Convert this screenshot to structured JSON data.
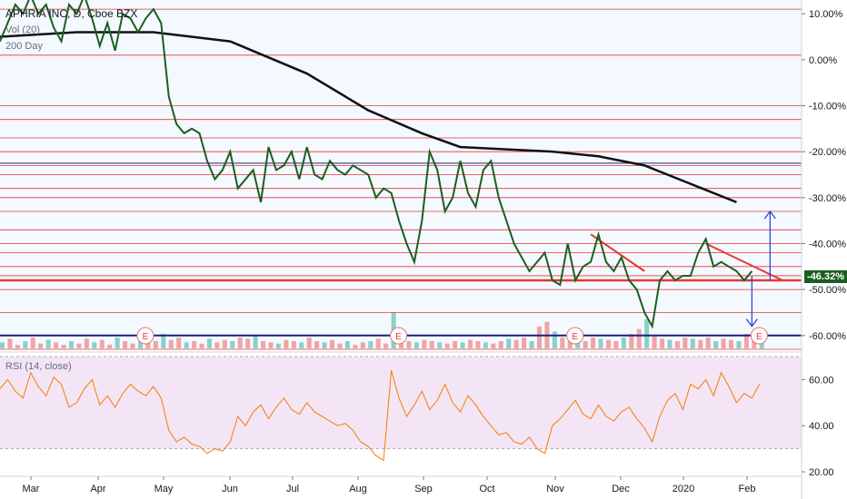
{
  "header": {
    "symbol_title": "APHRIA INC, D, Cboe BZX",
    "volume_label": "Vol (20)",
    "ma_label": "200 Day"
  },
  "rsi_label": "RSI (14, close)",
  "last_price_tag": "-46.32%",
  "earnings_marker": "E",
  "colors": {
    "price_line": "#1b5e20",
    "ma_line": "#111111",
    "support_resistance": "#e53935",
    "blue_line": "#1a237e",
    "rsi_line": "#f57c00",
    "rsi_band": "#f3e5f5",
    "volume_up": "#80cbc4",
    "volume_down": "#ef9a9a",
    "last_tag_bg": "#1b5e20"
  },
  "chart_data": [
    {
      "type": "line",
      "title": "APHRIA INC, D, Cboe BZX",
      "x_ticks": [
        "Mar",
        "Apr",
        "May",
        "Jun",
        "Jul",
        "Aug",
        "Sep",
        "Oct",
        "Nov",
        "Dec",
        "2020",
        "Feb"
      ],
      "y_ticks": [
        "10.00%",
        "0.00%",
        "-10.00%",
        "-20.00%",
        "-30.00%",
        "-40.00%",
        "-50.00%",
        "-60.00%"
      ],
      "y_unit": "percent change",
      "ylim": [
        -63,
        13
      ],
      "series": [
        {
          "name": "Price",
          "points": [
            [
              0,
              4
            ],
            [
              1,
              8
            ],
            [
              2,
              12
            ],
            [
              3,
              10
            ],
            [
              4,
              14
            ],
            [
              5,
              10
            ],
            [
              6,
              12
            ],
            [
              7,
              7
            ],
            [
              8,
              4
            ],
            [
              9,
              12
            ],
            [
              10,
              10
            ],
            [
              11,
              14
            ],
            [
              12,
              9
            ],
            [
              13,
              3
            ],
            [
              14,
              8
            ],
            [
              15,
              2
            ],
            [
              16,
              10
            ],
            [
              17,
              9
            ],
            [
              18,
              6
            ],
            [
              19,
              9
            ],
            [
              20,
              11
            ],
            [
              21,
              8
            ],
            [
              22,
              -8
            ],
            [
              23,
              -14
            ],
            [
              24,
              -16
            ],
            [
              25,
              -15
            ],
            [
              26,
              -16
            ],
            [
              27,
              -22
            ],
            [
              28,
              -26
            ],
            [
              29,
              -24
            ],
            [
              30,
              -20
            ],
            [
              31,
              -28
            ],
            [
              32,
              -26
            ],
            [
              33,
              -24
            ],
            [
              34,
              -31
            ],
            [
              35,
              -19
            ],
            [
              36,
              -24
            ],
            [
              37,
              -23
            ],
            [
              38,
              -20
            ],
            [
              39,
              -26
            ],
            [
              40,
              -19
            ],
            [
              41,
              -25
            ],
            [
              42,
              -26
            ],
            [
              43,
              -22
            ],
            [
              44,
              -24
            ],
            [
              45,
              -25
            ],
            [
              46,
              -23
            ],
            [
              47,
              -24
            ],
            [
              48,
              -25
            ],
            [
              49,
              -30
            ],
            [
              50,
              -28
            ],
            [
              51,
              -29
            ],
            [
              52,
              -35
            ],
            [
              53,
              -40
            ],
            [
              54,
              -44
            ],
            [
              55,
              -35
            ],
            [
              56,
              -20
            ],
            [
              57,
              -24
            ],
            [
              58,
              -33
            ],
            [
              59,
              -30
            ],
            [
              60,
              -22
            ],
            [
              61,
              -29
            ],
            [
              62,
              -32
            ],
            [
              63,
              -24
            ],
            [
              64,
              -22
            ],
            [
              65,
              -30
            ],
            [
              66,
              -35
            ],
            [
              67,
              -40
            ],
            [
              68,
              -43
            ],
            [
              69,
              -46
            ],
            [
              70,
              -44
            ],
            [
              71,
              -42
            ],
            [
              72,
              -48
            ],
            [
              73,
              -49
            ],
            [
              74,
              -40
            ],
            [
              75,
              -48
            ],
            [
              76,
              -45
            ],
            [
              77,
              -44
            ],
            [
              78,
              -38
            ],
            [
              79,
              -44
            ],
            [
              80,
              -46
            ],
            [
              81,
              -43
            ],
            [
              82,
              -48
            ],
            [
              83,
              -50
            ],
            [
              84,
              -55
            ],
            [
              85,
              -58
            ],
            [
              86,
              -48
            ],
            [
              87,
              -46
            ],
            [
              88,
              -48
            ],
            [
              89,
              -47
            ],
            [
              90,
              -47
            ],
            [
              91,
              -42
            ],
            [
              92,
              -39
            ],
            [
              93,
              -45
            ],
            [
              94,
              -44
            ],
            [
              95,
              -45
            ],
            [
              96,
              -46
            ],
            [
              97,
              -48
            ],
            [
              98,
              -46
            ]
          ]
        },
        {
          "name": "200 Day",
          "points": [
            [
              0,
              5
            ],
            [
              10,
              6
            ],
            [
              20,
              6
            ],
            [
              30,
              4
            ],
            [
              40,
              -3
            ],
            [
              48,
              -11
            ],
            [
              55,
              -16
            ],
            [
              60,
              -19
            ],
            [
              66,
              -19.5
            ],
            [
              72,
              -20
            ],
            [
              78,
              -21
            ],
            [
              84,
              -23
            ],
            [
              90,
              -27
            ],
            [
              96,
              -31
            ]
          ]
        }
      ],
      "annotations": {
        "horizontal_levels": [
          -63,
          11,
          1,
          -10,
          -13,
          -17,
          -20,
          -23,
          -25,
          -28,
          -30,
          -33,
          -37,
          -40,
          -42,
          -45,
          -47,
          -48,
          -50,
          -55
        ],
        "thick_level": -48,
        "blue_levels": [
          -22.5,
          -60
        ],
        "descending_trendlines": [
          [
            [
              77,
              -38
            ],
            [
              84,
              -46
            ]
          ],
          [
            [
              92,
              -40
            ],
            [
              102,
              -48
            ]
          ]
        ],
        "arrow_up": {
          "x": 98,
          "from": -48,
          "to": -33
        },
        "arrow_down": {
          "x": 98,
          "from": -47,
          "to": -58
        },
        "earnings_x": [
          18,
          51,
          74,
          98
        ]
      }
    },
    {
      "type": "bar",
      "title": "Vol (20)",
      "values": [
        5,
        8,
        3,
        6,
        9,
        4,
        7,
        5,
        3,
        6,
        4,
        8,
        5,
        7,
        3,
        9,
        6,
        4,
        8,
        5,
        6,
        12,
        7,
        9,
        5,
        6,
        4,
        8,
        5,
        7,
        6,
        9,
        8,
        10,
        6,
        5,
        4,
        7,
        6,
        5,
        9,
        6,
        5,
        7,
        4,
        6,
        3,
        5,
        6,
        8,
        4,
        30,
        10,
        6,
        5,
        7,
        6,
        5,
        4,
        6,
        5,
        7,
        6,
        5,
        4,
        6,
        8,
        7,
        9,
        6,
        18,
        22,
        14,
        9,
        8,
        7,
        6,
        9,
        8,
        7,
        6,
        9,
        12,
        16,
        24,
        10,
        8,
        7,
        6,
        9,
        8,
        7,
        9,
        6,
        8,
        7,
        6,
        12,
        14,
        8
      ]
    },
    {
      "type": "line",
      "title": "RSI (14, close)",
      "y_ticks": [
        "60.00",
        "40.00",
        "20.00"
      ],
      "ylim": [
        20,
        70
      ],
      "band": [
        30,
        70
      ],
      "values": [
        56,
        60,
        55,
        52,
        63,
        57,
        53,
        61,
        58,
        48,
        50,
        56,
        60,
        49,
        53,
        48,
        54,
        58,
        55,
        53,
        57,
        52,
        38,
        33,
        35,
        32,
        31,
        28,
        30,
        29,
        33,
        44,
        40,
        46,
        49,
        43,
        48,
        52,
        47,
        45,
        50,
        46,
        44,
        42,
        40,
        41,
        38,
        33,
        31,
        27,
        25,
        64,
        52,
        44,
        49,
        55,
        47,
        51,
        58,
        50,
        46,
        53,
        49,
        44,
        40,
        36,
        37,
        33,
        32,
        35,
        30,
        28,
        40,
        43,
        47,
        51,
        45,
        43,
        49,
        44,
        42,
        46,
        48,
        43,
        39,
        33,
        44,
        51,
        54,
        47,
        58,
        56,
        60,
        53,
        63,
        57,
        50,
        54,
        52,
        58
      ]
    }
  ]
}
